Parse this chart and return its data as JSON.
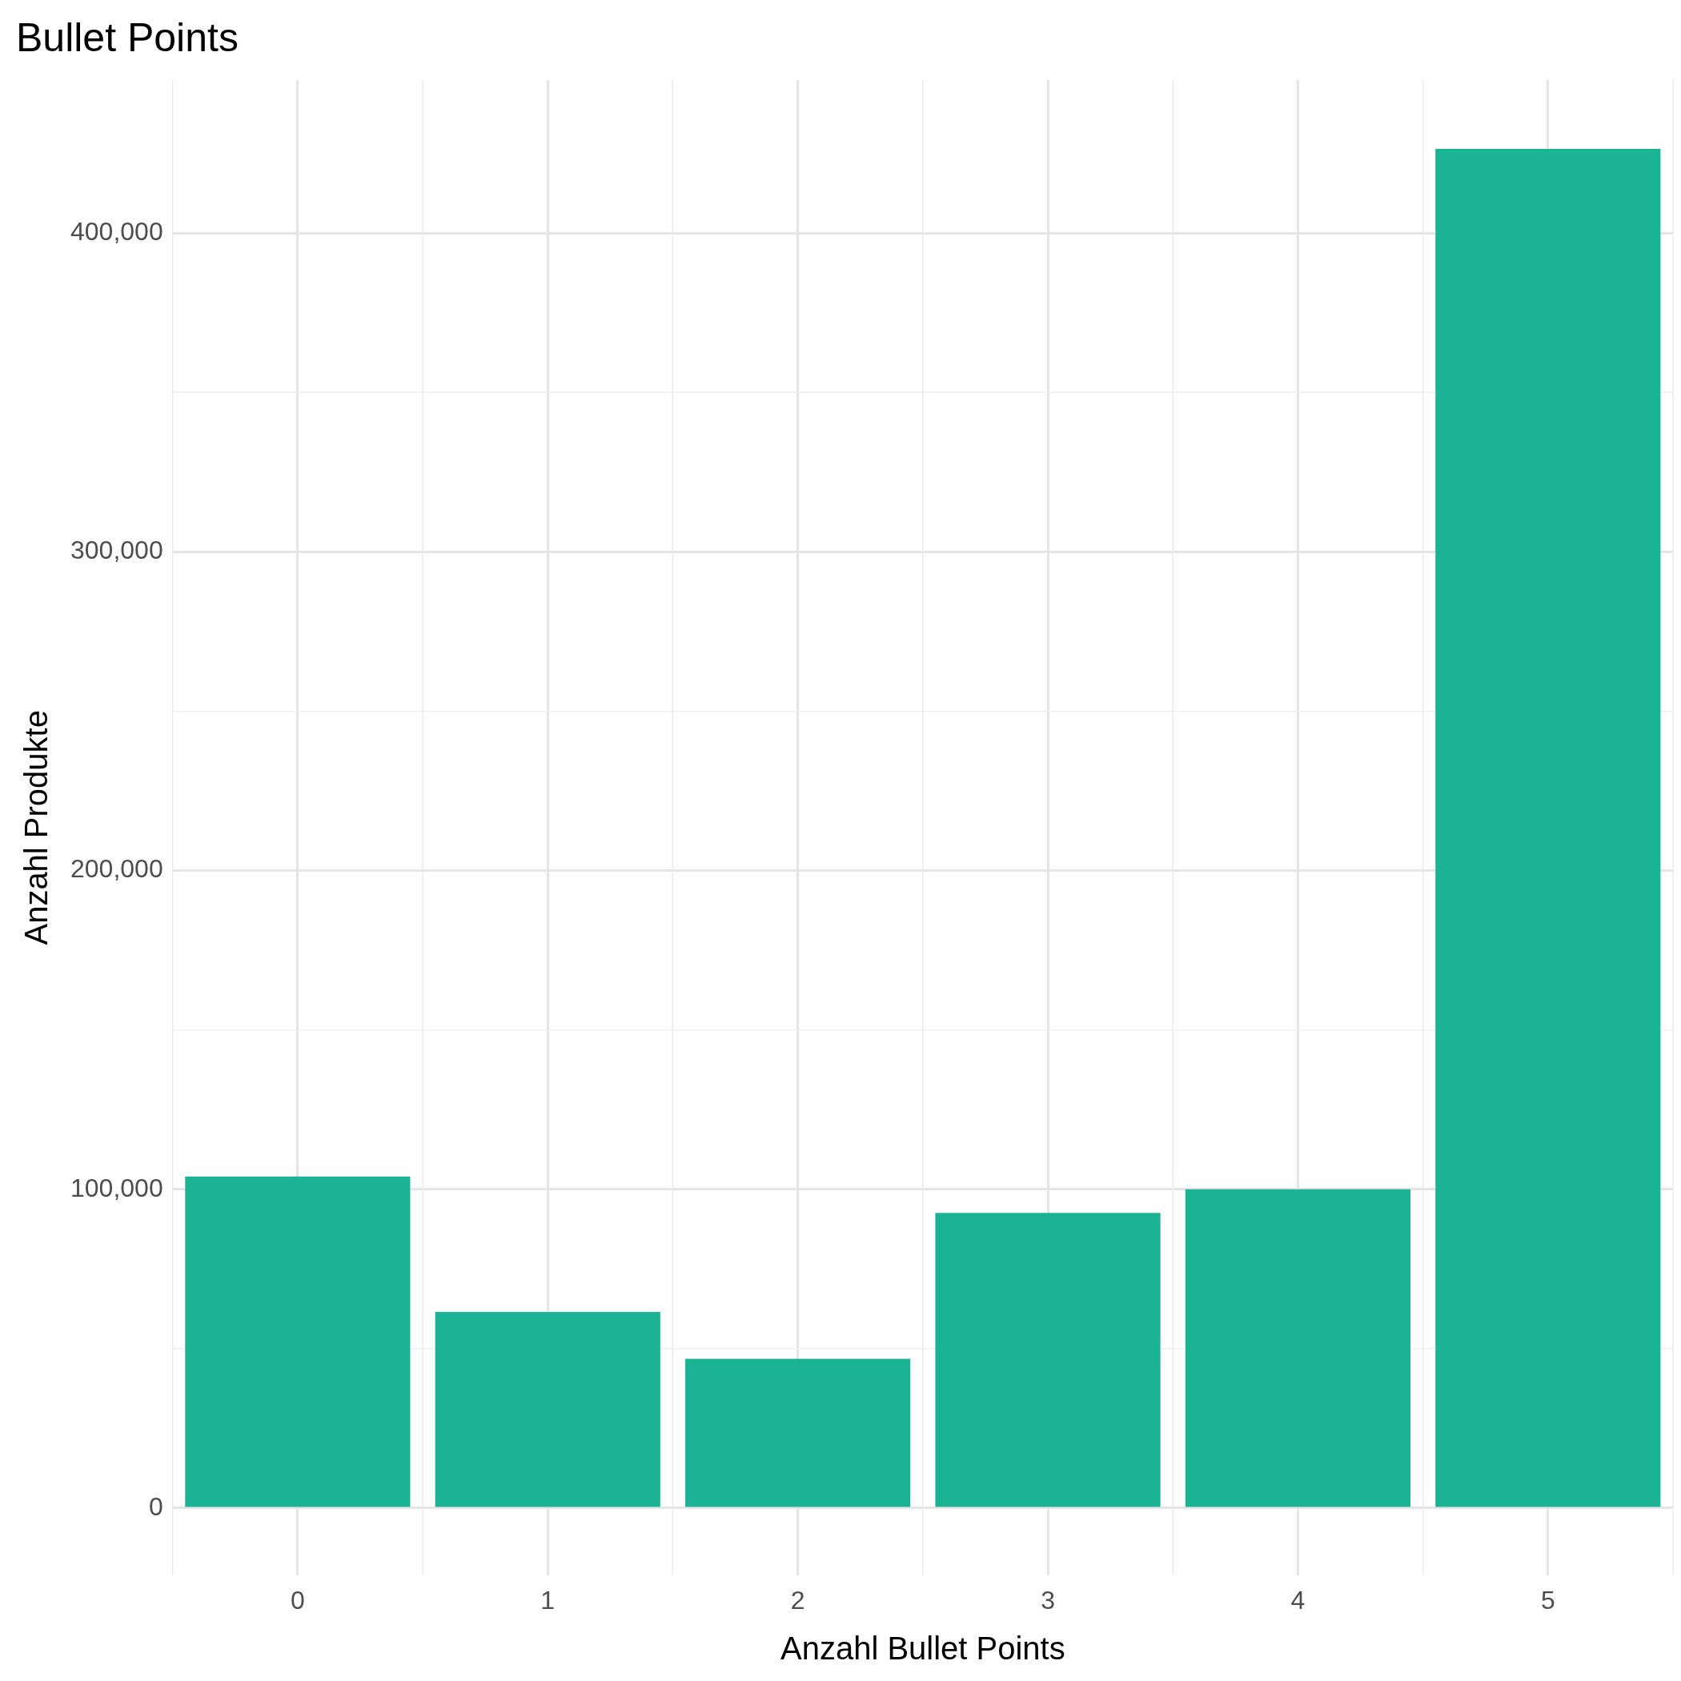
{
  "chart_data": {
    "type": "bar",
    "title": "Bullet Points",
    "xlabel": "Anzahl Bullet Points",
    "ylabel": "Anzahl Produkte",
    "categories": [
      "0",
      "1",
      "2",
      "3",
      "4",
      "5"
    ],
    "values": [
      104000,
      61500,
      46800,
      92600,
      100000,
      426400
    ],
    "color": "#1ab394",
    "ylim": [
      -21000,
      448000
    ],
    "yticks": [
      {
        "value": 0,
        "label": "0"
      },
      {
        "value": 50000,
        "label": null
      },
      {
        "value": 100000,
        "label": "100,000"
      },
      {
        "value": 150000,
        "label": null
      },
      {
        "value": 200000,
        "label": "200,000"
      },
      {
        "value": 250000,
        "label": null
      },
      {
        "value": 300000,
        "label": "300,000"
      },
      {
        "value": 350000,
        "label": null
      },
      {
        "value": 400000,
        "label": "400,000"
      }
    ],
    "grid": true,
    "legend": false
  }
}
